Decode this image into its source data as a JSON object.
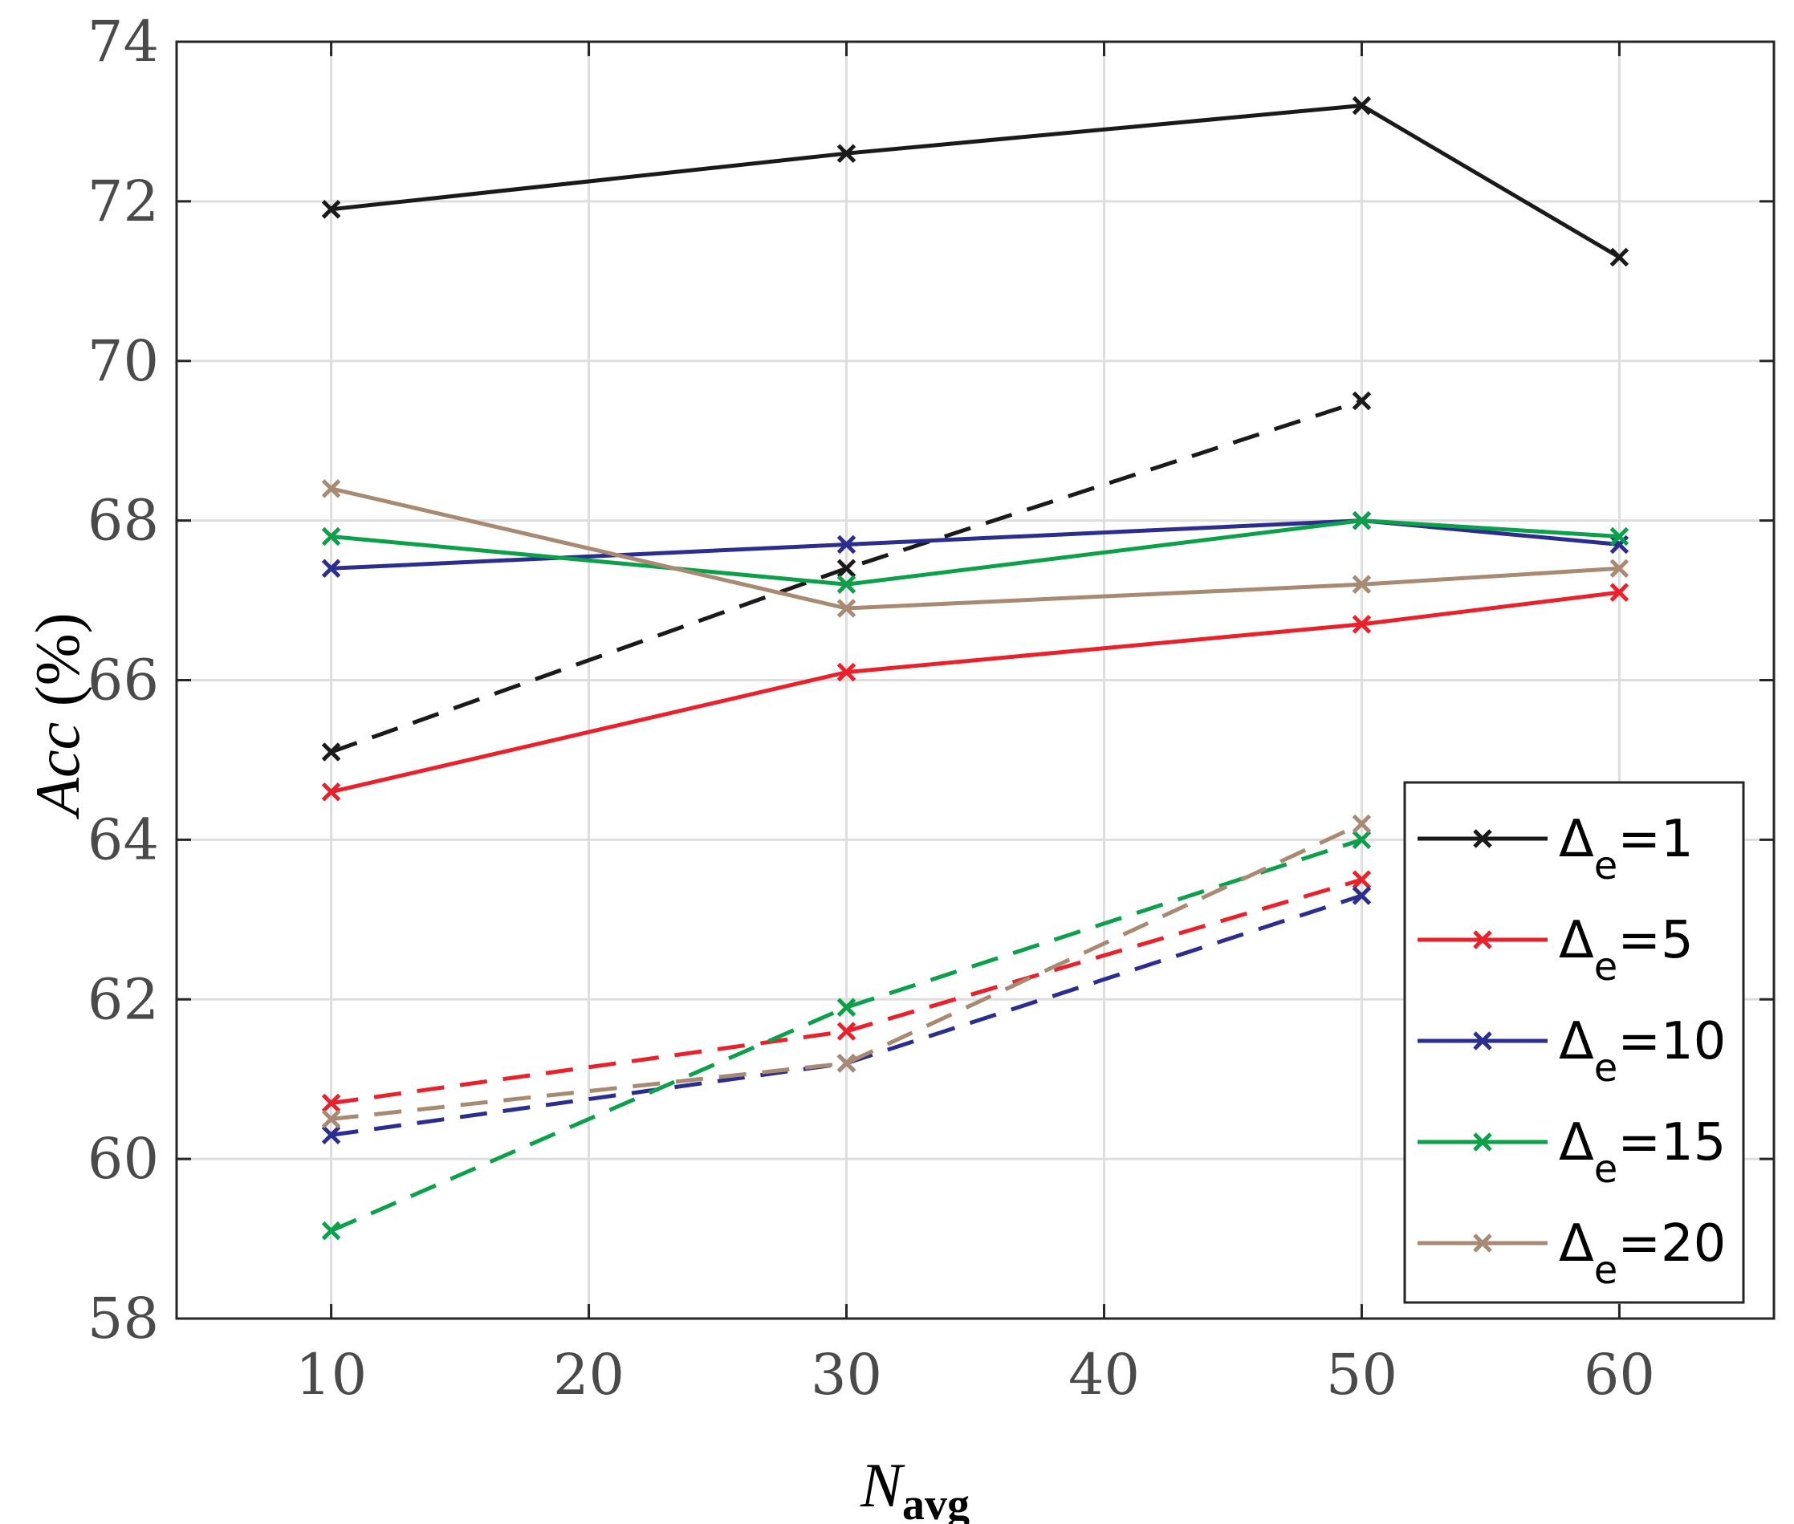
{
  "chart_data": {
    "type": "line",
    "xlabel": {
      "main": "N",
      "sub": "avg"
    },
    "ylabel": {
      "main": "Acc",
      "unit": "(%)"
    },
    "xlim": [
      4,
      66
    ],
    "ylim": [
      58,
      74
    ],
    "xticks": [
      10,
      20,
      30,
      40,
      50,
      60
    ],
    "yticks": [
      58,
      60,
      62,
      64,
      66,
      68,
      70,
      72,
      74
    ],
    "grid": true,
    "legend_position": "bottom-right",
    "series": [
      {
        "name": "Δe=1",
        "symbol": "Δ",
        "sub": "e",
        "value_text": "=1",
        "color": "#1a1a1a",
        "style": "solid",
        "x": [
          10,
          30,
          50,
          60
        ],
        "values": [
          71.9,
          72.6,
          73.2,
          71.3
        ]
      },
      {
        "name": "Δe=5",
        "symbol": "Δ",
        "sub": "e",
        "value_text": "=5",
        "color": "#e8212a",
        "style": "solid",
        "x": [
          10,
          30,
          50,
          60
        ],
        "values": [
          64.6,
          66.1,
          66.7,
          67.1
        ]
      },
      {
        "name": "Δe=10",
        "symbol": "Δ",
        "sub": "e",
        "value_text": "=10",
        "color": "#2b2e8e",
        "style": "solid",
        "x": [
          10,
          30,
          50,
          60
        ],
        "values": [
          67.4,
          67.7,
          68.0,
          67.7
        ]
      },
      {
        "name": "Δe=15",
        "symbol": "Δ",
        "sub": "e",
        "value_text": "=15",
        "color": "#0ca04a",
        "style": "solid",
        "x": [
          10,
          30,
          50,
          60
        ],
        "values": [
          67.8,
          67.2,
          68.0,
          67.8
        ]
      },
      {
        "name": "Δe=20",
        "symbol": "Δ",
        "sub": "e",
        "value_text": "=20",
        "color": "#a88a73",
        "style": "solid",
        "x": [
          10,
          30,
          50,
          60
        ],
        "values": [
          68.4,
          66.9,
          67.2,
          67.4
        ]
      },
      {
        "name": "Δe=1 (dashed)",
        "color": "#1a1a1a",
        "style": "dashed",
        "x": [
          10,
          30,
          50
        ],
        "values": [
          65.1,
          67.4,
          69.5
        ]
      },
      {
        "name": "Δe=5 (dashed)",
        "color": "#e8212a",
        "style": "dashed",
        "x": [
          10,
          30,
          50
        ],
        "values": [
          60.7,
          61.6,
          63.5
        ]
      },
      {
        "name": "Δe=10 (dashed)",
        "color": "#2b2e8e",
        "style": "dashed",
        "x": [
          10,
          30,
          50
        ],
        "values": [
          60.3,
          61.2,
          63.3
        ]
      },
      {
        "name": "Δe=15 (dashed)",
        "color": "#0ca04a",
        "style": "dashed",
        "x": [
          10,
          30,
          50
        ],
        "values": [
          59.1,
          61.9,
          64.0
        ]
      },
      {
        "name": "Δe=20 (dashed)",
        "color": "#a88a73",
        "style": "dashed",
        "x": [
          10,
          30,
          50
        ],
        "values": [
          60.5,
          61.2,
          64.2
        ]
      }
    ]
  }
}
